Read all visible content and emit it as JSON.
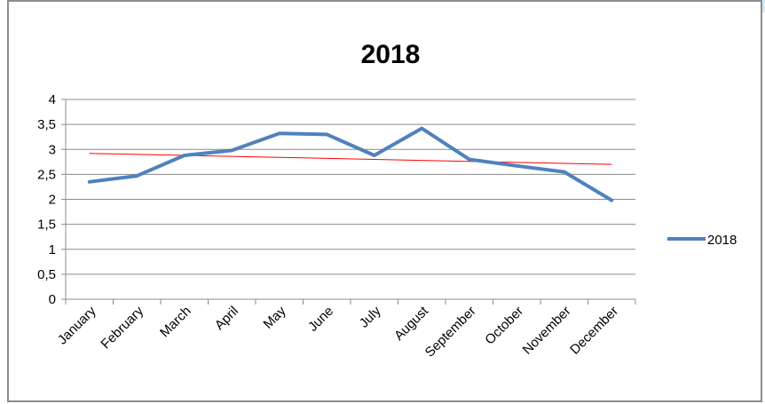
{
  "chart_data": {
    "type": "line",
    "title": "2018",
    "xlabel": "",
    "ylabel": "",
    "categories": [
      "January",
      "February",
      "March",
      "April",
      "May",
      "June",
      "July",
      "August",
      "September",
      "October",
      "November",
      "December"
    ],
    "series": [
      {
        "name": "2018",
        "color": "#4f81bd",
        "values": [
          2.35,
          2.47,
          2.88,
          2.98,
          3.32,
          3.3,
          2.88,
          3.42,
          2.8,
          2.67,
          2.55,
          1.98
        ]
      }
    ],
    "trendline": {
      "type": "linear",
      "color": "#ff0000",
      "start": 2.92,
      "end": 2.7
    },
    "ylim": [
      0,
      4
    ],
    "yticks": [
      "0",
      "0,5",
      "1",
      "1,5",
      "2",
      "2,5",
      "3",
      "3,5",
      "4"
    ],
    "ytick_values": [
      0,
      0.5,
      1,
      1.5,
      2,
      2.5,
      3,
      3.5,
      4
    ],
    "grid": true,
    "legend_position": "right"
  }
}
